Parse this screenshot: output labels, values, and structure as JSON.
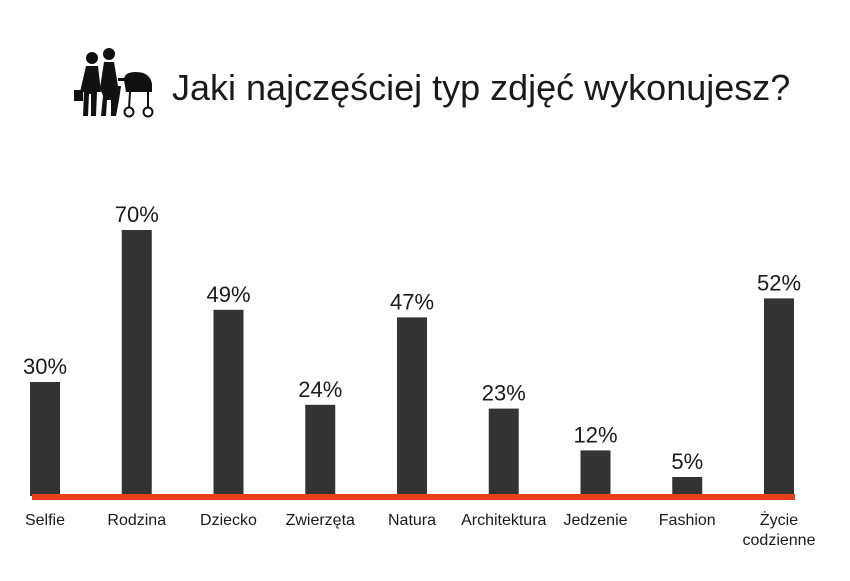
{
  "chart_data": {
    "type": "bar",
    "title": "Jaki najczęściej typ zdjęć wykonujesz?",
    "categories": [
      "Selfie",
      "Rodzina",
      "Dziecko",
      "Zwierzęta",
      "Natura",
      "Architektura",
      "Jedzenie",
      "Fashion",
      "Życie codzienne"
    ],
    "values": [
      30,
      70,
      49,
      24,
      47,
      23,
      12,
      5,
      52
    ],
    "value_labels": [
      "30%",
      "70%",
      "49%",
      "24%",
      "47%",
      "23%",
      "12%",
      "5%",
      "52%"
    ],
    "unit": "%",
    "ylim": [
      0,
      70
    ],
    "grid": false,
    "legend": "none",
    "colors": {
      "bar": "#333333",
      "baseline": "#e8401c",
      "text": "#1a1a1a"
    },
    "icon": "family-with-stroller-icon"
  }
}
